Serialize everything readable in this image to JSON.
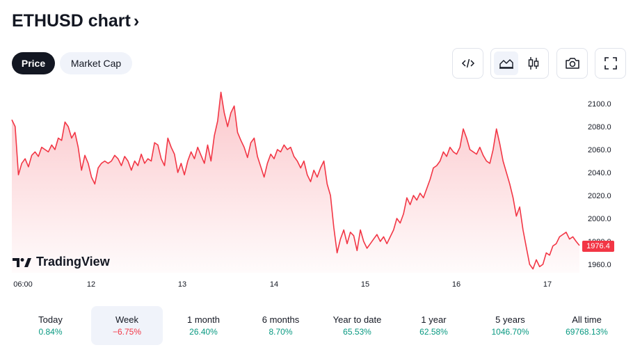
{
  "header": {
    "title": "ETHUSD chart",
    "chevron": "›"
  },
  "tabs": [
    {
      "label": "Price",
      "active": true
    },
    {
      "label": "Market Cap",
      "active": false
    }
  ],
  "toolbar": {
    "embed_icon": "code-embed-icon",
    "area_chart_icon": "area-chart-icon",
    "candles_icon": "candlestick-icon",
    "snapshot_icon": "camera-icon",
    "fullscreen_icon": "fullscreen-icon"
  },
  "colors": {
    "line": "#f23645",
    "positive": "#089981",
    "negative": "#f23645",
    "dark": "#131722"
  },
  "branding": {
    "text": "TradingView"
  },
  "last_price": "1976.4",
  "chart_data": {
    "type": "area",
    "x_ticks": [
      "06:00",
      "12",
      "13",
      "14",
      "15",
      "16",
      "17"
    ],
    "y_ticks": [
      "1960.0",
      "1980.0",
      "2000.0",
      "2020.0",
      "2040.0",
      "2060.0",
      "2080.0",
      "2100.0"
    ],
    "ylim": [
      1950,
      2113
    ],
    "series": [
      {
        "values": [
          2086,
          2080,
          2038,
          2048,
          2052,
          2045,
          2055,
          2058,
          2054,
          2062,
          2060,
          2058,
          2064,
          2060,
          2070,
          2068,
          2084,
          2080,
          2070,
          2075,
          2062,
          2042,
          2055,
          2048,
          2036,
          2030,
          2044,
          2048,
          2050,
          2048,
          2050,
          2055,
          2052,
          2046,
          2054,
          2050,
          2042,
          2050,
          2046,
          2056,
          2048,
          2052,
          2050,
          2066,
          2064,
          2052,
          2046,
          2070,
          2062,
          2056,
          2040,
          2048,
          2038,
          2050,
          2058,
          2052,
          2062,
          2055,
          2048,
          2064,
          2050,
          2072,
          2085,
          2110,
          2092,
          2080,
          2092,
          2098,
          2075,
          2068,
          2062,
          2053,
          2066,
          2070,
          2054,
          2045,
          2036,
          2048,
          2056,
          2052,
          2060,
          2058,
          2064,
          2060,
          2062,
          2054,
          2050,
          2044,
          2050,
          2038,
          2032,
          2042,
          2036,
          2044,
          2050,
          2030,
          2020,
          1992,
          1970,
          1982,
          1990,
          1978,
          1988,
          1985,
          1972,
          1990,
          1980,
          1974,
          1978,
          1982,
          1986,
          1980,
          1984,
          1978,
          1984,
          1990,
          2000,
          1996,
          2004,
          2018,
          2012,
          2020,
          2016,
          2022,
          2018,
          2026,
          2034,
          2044,
          2046,
          2050,
          2058,
          2054,
          2062,
          2058,
          2056,
          2062,
          2078,
          2070,
          2060,
          2058,
          2056,
          2062,
          2055,
          2050,
          2048,
          2060,
          2078,
          2065,
          2050,
          2040,
          2030,
          2018,
          2002,
          2010,
          1990,
          1975,
          1960,
          1956,
          1964,
          1958,
          1960,
          1970,
          1968,
          1976,
          1978,
          1984,
          1986,
          1988,
          1982,
          1984,
          1980,
          1976.4
        ]
      }
    ]
  },
  "periods": [
    {
      "label": "Today",
      "value": "0.84%",
      "sign": "pos",
      "selected": false
    },
    {
      "label": "Week",
      "value": "−6.75%",
      "sign": "neg",
      "selected": true
    },
    {
      "label": "1 month",
      "value": "26.40%",
      "sign": "pos",
      "selected": false
    },
    {
      "label": "6 months",
      "value": "8.70%",
      "sign": "pos",
      "selected": false
    },
    {
      "label": "Year to date",
      "value": "65.53%",
      "sign": "pos",
      "selected": false
    },
    {
      "label": "1 year",
      "value": "62.58%",
      "sign": "pos",
      "selected": false
    },
    {
      "label": "5 years",
      "value": "1046.70%",
      "sign": "pos",
      "selected": false
    },
    {
      "label": "All time",
      "value": "69768.13%",
      "sign": "pos",
      "selected": false
    }
  ]
}
